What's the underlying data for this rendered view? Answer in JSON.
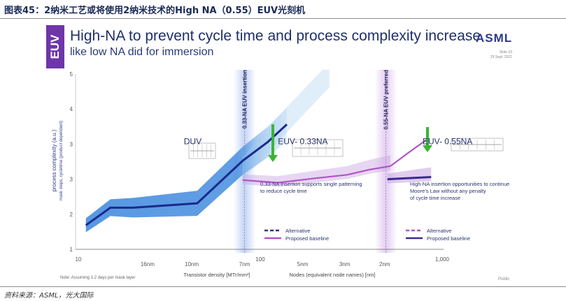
{
  "caption": "图表45：2纳米工艺或将使用2纳米技术的High NA（0.55）EUV光刻机",
  "source": "资料来源：ASML，光大国际",
  "slide": {
    "tab": "EUV",
    "title": "High-NA to prevent cycle time and process complexity increase",
    "subtitle": "like low NA did for immersion",
    "logo": "ASML",
    "slide_number": "Slide 33",
    "date": "29 Sept. 2021",
    "note": "Note: Assuming 1.2 days per mask layer",
    "public": "Public"
  },
  "colors": {
    "tab": "#6e36a8",
    "duv_line": "#1a2a8c",
    "duv_band": "#3a86dd",
    "euv_line": "#b055c8",
    "euv_band": "#c9a3e0",
    "arrow": "#3bb534",
    "alt_line": "#3b2a90"
  },
  "chart_data": {
    "type": "line",
    "title": "High-NA to prevent cycle time and process complexity increase",
    "xlabel": "Transistor density [MTr/mm²]",
    "xlabel2": "Nodes (equivalent node names) [nm]",
    "ylabel": "process complexity (a.u.)",
    "ylabel_sub": "mask steps, cycletime (product dependent)",
    "xscale": "log",
    "xlim": [
      10,
      1000
    ],
    "ylim": [
      1,
      5
    ],
    "y_ticks": [
      "1",
      "2",
      "3",
      "3",
      "4",
      "5"
    ],
    "density_ticks": [
      {
        "label": "10",
        "x": 10
      },
      {
        "label": "100",
        "x": 100
      },
      {
        "label": "1,000",
        "x": 1000
      }
    ],
    "node_ticks": [
      {
        "label": "16nm",
        "x": 24
      },
      {
        "label": "10nm",
        "x": 42
      },
      {
        "label": "7nm",
        "x": 82
      },
      {
        "label": "5nm",
        "x": 171
      },
      {
        "label": "3nm",
        "x": 291
      },
      {
        "label": "2nm",
        "x": 483
      }
    ],
    "series": [
      {
        "name": "DUV",
        "style": "solid",
        "x": [
          11,
          15,
          20,
          30,
          45,
          80,
          110,
          140
        ],
        "y": [
          1.55,
          1.95,
          1.95,
          2.0,
          2.05,
          3.02,
          3.45,
          3.85
        ]
      },
      {
        "name": "EUV-0.33NA proposed baseline",
        "style": "solid",
        "x": [
          80,
          125,
          200,
          300,
          400,
          520
        ],
        "y": [
          2.58,
          2.52,
          2.62,
          2.7,
          2.82,
          2.9
        ]
      },
      {
        "name": "EUV-0.33NA alternative",
        "style": "dashed",
        "x": [
          520,
          650,
          820
        ],
        "y": [
          2.9,
          3.2,
          3.5
        ]
      },
      {
        "name": "EUV-0.55NA proposed baseline",
        "style": "solid",
        "x": [
          500,
          870
        ],
        "y": [
          2.6,
          2.65
        ]
      }
    ],
    "regions": [
      {
        "label": "DUV",
        "x": 38,
        "y": 3.4
      },
      {
        "label": "EUV- 0.33NA",
        "x": 125,
        "y": 3.4
      },
      {
        "label": "EUV- 0.55NA",
        "x": 780,
        "y": 3.4
      }
    ],
    "insertions": [
      {
        "label": "0.33-NA EUV insertion",
        "x": 82
      },
      {
        "label": "0.55-NA EUV preferred",
        "x": 490
      }
    ],
    "annotations": [
      "0.33-NA insertion supports single patterning to reduce cycle time",
      "High-NA insertion opportunities to continue Moore’s Law without any penalty of cycle time increase"
    ],
    "legend": [
      {
        "group": 1,
        "items": [
          {
            "label": "Alternative",
            "style": "dashed"
          },
          {
            "label": "Proposed baseline",
            "style": "solid"
          }
        ],
        "placement": "bottom-center"
      },
      {
        "group": 2,
        "items": [
          {
            "label": "Alternative",
            "style": "dashed"
          },
          {
            "label": "Proposed baseline",
            "style": "solid"
          }
        ],
        "placement": "bottom-right"
      }
    ]
  }
}
